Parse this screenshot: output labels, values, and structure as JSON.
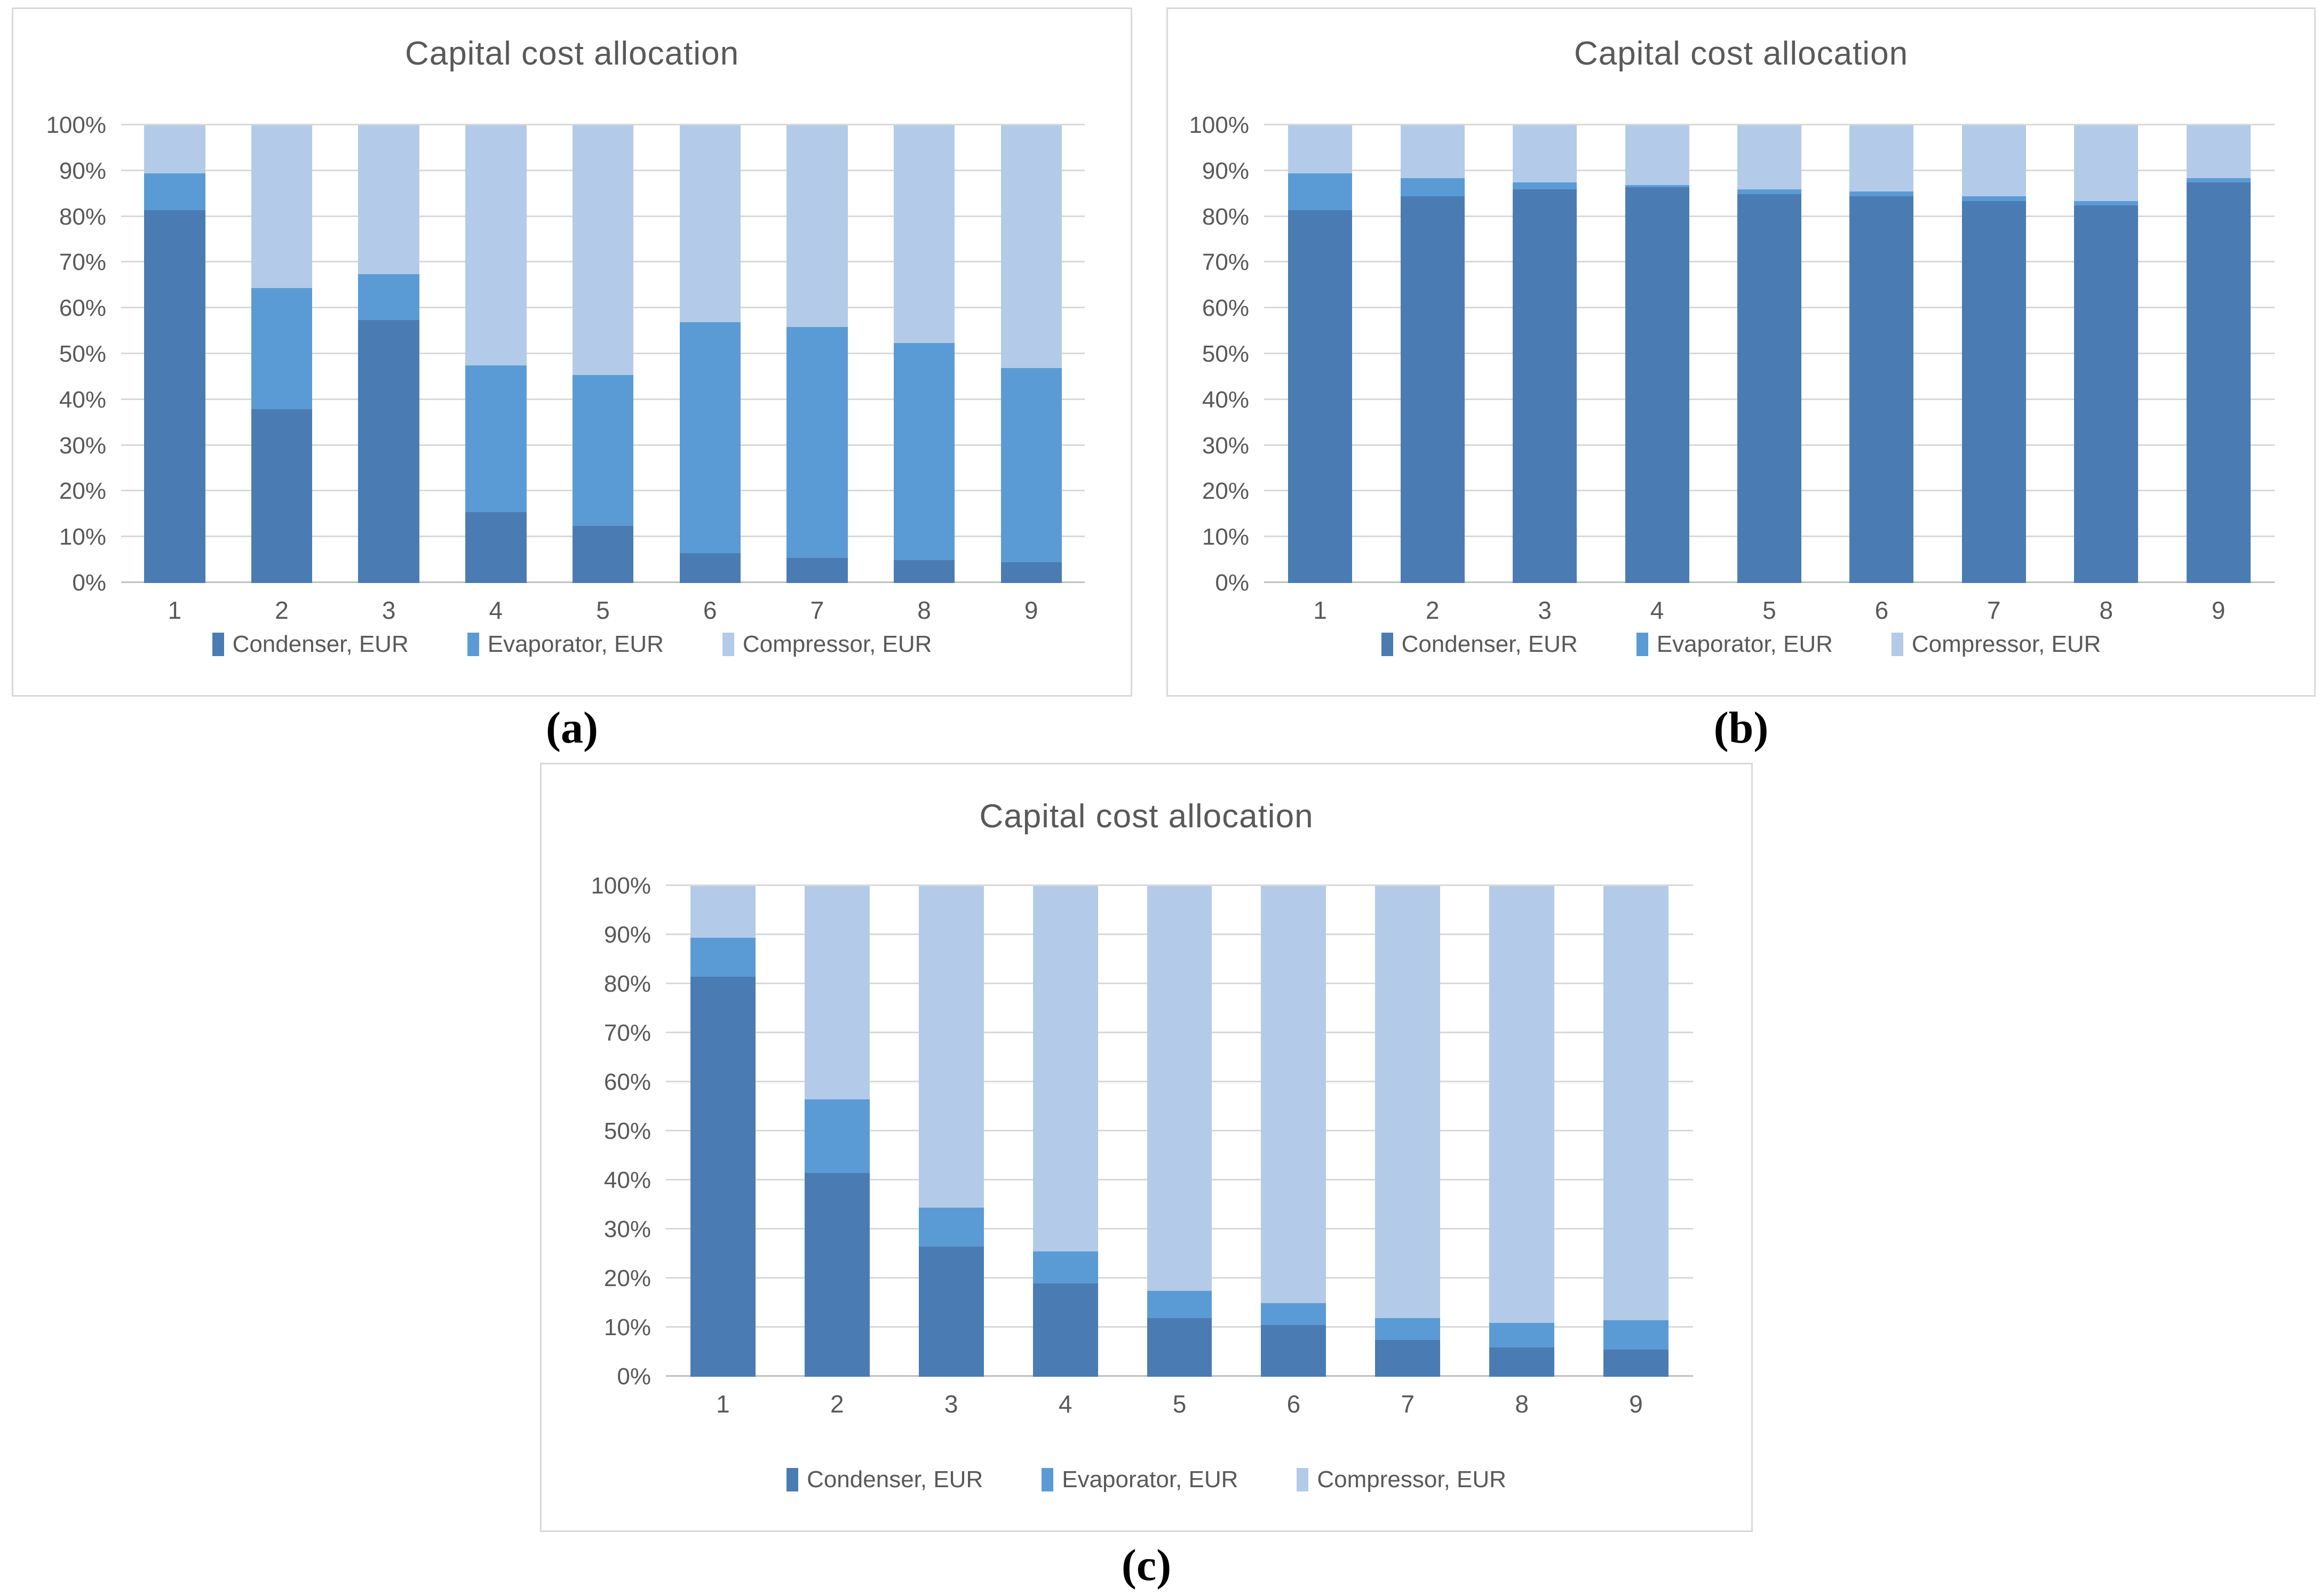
{
  "figure_captions": {
    "a": "(a)",
    "b": "(b)",
    "c": "(c)"
  },
  "colors": {
    "condenser": "#4a7cb3",
    "evaporator": "#5b9bd5",
    "compressor": "#b3cbe8",
    "gridline": "#d9d9d9",
    "axis_text": "#595959",
    "panel_border": "#d9d9d9"
  },
  "chart_data": [
    {
      "id": "a",
      "type": "bar",
      "stacked": true,
      "percent_stacked": true,
      "title": "Capital cost allocation",
      "categories": [
        "1",
        "2",
        "3",
        "4",
        "5",
        "6",
        "7",
        "8",
        "9"
      ],
      "series": [
        {
          "name": "Condenser, EUR",
          "color": "#4a7cb3",
          "values": [
            81.5,
            38.0,
            57.5,
            15.5,
            12.5,
            6.5,
            5.5,
            5.0,
            4.5
          ]
        },
        {
          "name": "Evaporator, EUR",
          "color": "#5b9bd5",
          "values": [
            8.0,
            26.5,
            10.0,
            32.0,
            33.0,
            50.5,
            50.5,
            47.5,
            42.5
          ]
        },
        {
          "name": "Compressor, EUR",
          "color": "#b3cbe8",
          "values": [
            10.5,
            35.5,
            32.5,
            52.5,
            54.5,
            43.0,
            44.0,
            47.5,
            53.0
          ]
        }
      ],
      "y_ticks": [
        "0%",
        "10%",
        "20%",
        "30%",
        "40%",
        "50%",
        "60%",
        "70%",
        "80%",
        "90%",
        "100%"
      ],
      "ylim": [
        0,
        100
      ],
      "grid": true,
      "legend_position": "bottom"
    },
    {
      "id": "b",
      "type": "bar",
      "stacked": true,
      "percent_stacked": true,
      "title": "Capital cost allocation",
      "categories": [
        "1",
        "2",
        "3",
        "4",
        "5",
        "6",
        "7",
        "8",
        "9"
      ],
      "series": [
        {
          "name": "Condenser, EUR",
          "color": "#4a7cb3",
          "values": [
            81.5,
            84.5,
            86.0,
            86.5,
            85.0,
            84.5,
            83.5,
            82.5,
            87.5
          ]
        },
        {
          "name": "Evaporator, EUR",
          "color": "#5b9bd5",
          "values": [
            8.0,
            4.0,
            1.5,
            0.5,
            1.0,
            1.0,
            1.0,
            1.0,
            1.0
          ]
        },
        {
          "name": "Compressor, EUR",
          "color": "#b3cbe8",
          "values": [
            10.5,
            11.5,
            12.5,
            13.0,
            14.0,
            14.5,
            15.5,
            16.5,
            11.5
          ]
        }
      ],
      "y_ticks": [
        "0%",
        "10%",
        "20%",
        "30%",
        "40%",
        "50%",
        "60%",
        "70%",
        "80%",
        "90%",
        "100%"
      ],
      "ylim": [
        0,
        100
      ],
      "grid": true,
      "legend_position": "bottom"
    },
    {
      "id": "c",
      "type": "bar",
      "stacked": true,
      "percent_stacked": true,
      "title": "Capital cost allocation",
      "categories": [
        "1",
        "2",
        "3",
        "4",
        "5",
        "6",
        "7",
        "8",
        "9"
      ],
      "series": [
        {
          "name": "Condenser, EUR",
          "color": "#4a7cb3",
          "values": [
            81.5,
            41.5,
            26.5,
            19.0,
            12.0,
            10.5,
            7.5,
            6.0,
            5.5
          ]
        },
        {
          "name": "Evaporator, EUR",
          "color": "#5b9bd5",
          "values": [
            8.0,
            15.0,
            8.0,
            6.5,
            5.5,
            4.5,
            4.5,
            5.0,
            6.0
          ]
        },
        {
          "name": "Compressor, EUR",
          "color": "#b3cbe8",
          "values": [
            10.5,
            43.5,
            65.5,
            74.5,
            82.5,
            85.0,
            88.0,
            89.0,
            88.5
          ]
        }
      ],
      "y_ticks": [
        "0%",
        "10%",
        "20%",
        "30%",
        "40%",
        "50%",
        "60%",
        "70%",
        "80%",
        "90%",
        "100%"
      ],
      "ylim": [
        0,
        100
      ],
      "grid": true,
      "legend_position": "bottom"
    }
  ]
}
